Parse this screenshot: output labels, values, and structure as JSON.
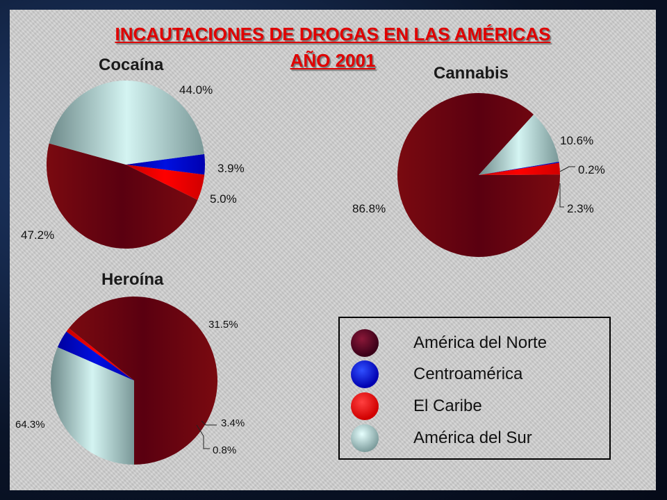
{
  "title": {
    "line1": "INCAUTACIONES DE DROGAS EN LAS AMÉRICAS",
    "line2": "AÑO 2001"
  },
  "colors": {
    "America del Norte": "#5a0010",
    "Centroamerica": "#0010e0",
    "El Caribe": "#ff0000",
    "America del Sur": "#c8ecea"
  },
  "legend": {
    "items": [
      {
        "label": "América del Norte",
        "color": "#5a0010"
      },
      {
        "label": "Centroamérica",
        "color": "#0010e0"
      },
      {
        "label": "El Caribe",
        "color": "#ff0000"
      },
      {
        "label": "América del Sur",
        "color": "#c8ecea"
      }
    ]
  },
  "chart_data": [
    {
      "type": "pie",
      "title": "Cocaína",
      "categories": [
        "América del Norte",
        "Centroamérica",
        "El Caribe",
        "América del Sur"
      ],
      "values": [
        47.2,
        3.9,
        5.0,
        44.0
      ],
      "labels": [
        "47.2%",
        "3.9%",
        "5.0%",
        "44.0%"
      ]
    },
    {
      "type": "pie",
      "title": "Cannabis",
      "categories": [
        "América del Norte",
        "Centroamérica",
        "El Caribe",
        "América del Sur"
      ],
      "values": [
        86.8,
        0.2,
        2.3,
        10.6
      ],
      "labels": [
        "86.8%",
        "0.2%",
        "2.3%",
        "10.6%"
      ]
    },
    {
      "type": "pie",
      "title": "Heroína",
      "categories": [
        "América del Norte",
        "Centroamérica",
        "El Caribe",
        "América del Sur"
      ],
      "values": [
        64.3,
        3.4,
        0.8,
        31.5
      ],
      "labels": [
        "64.3%",
        "3.4%",
        "0.8%",
        "31.5%"
      ]
    }
  ]
}
